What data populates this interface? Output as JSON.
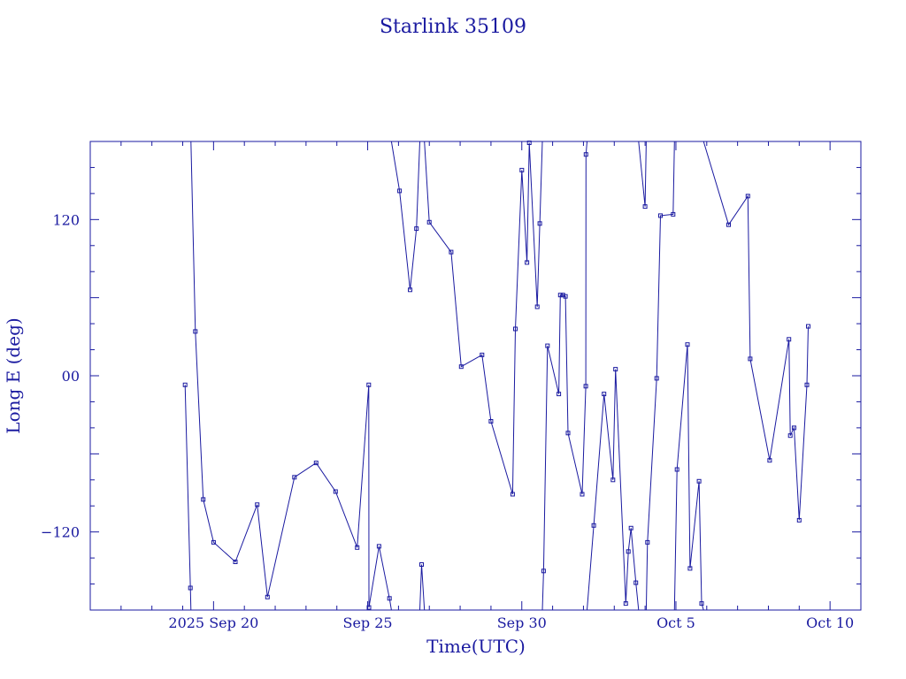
{
  "chart_data": {
    "type": "line",
    "title": "Starlink 35109",
    "xlabel": "Time(UTC)",
    "ylabel": "Long E (deg)",
    "x_range": [
      "2025-09-16T00:00",
      "2025-10-11T00:00"
    ],
    "ylim": [
      -180,
      180
    ],
    "x_ticks": [
      {
        "value": "2025-09-20T00:00",
        "label": "2025 Sep 20"
      },
      {
        "value": "2025-09-25T00:00",
        "label": "Sep 25"
      },
      {
        "value": "2025-09-30T00:00",
        "label": "Sep 30"
      },
      {
        "value": "2025-10-05T00:00",
        "label": "Oct  5"
      },
      {
        "value": "2025-10-10T00:00",
        "label": "Oct 10"
      }
    ],
    "y_ticks": [
      {
        "value": 120,
        "label": "120"
      },
      {
        "value": 0,
        "label": "00"
      },
      {
        "value": -120,
        "label": "−120"
      }
    ],
    "wraps_at_180": true,
    "markers": "open-square",
    "line_color": "#1a1aa0",
    "points": [
      [
        "2025-09-19T01:50",
        -7
      ],
      [
        "2025-09-19T06:00",
        -163
      ],
      [
        "2025-09-19T09:50",
        34
      ],
      [
        "2025-09-19T16:00",
        -95
      ],
      [
        "2025-09-20T00:00",
        -128
      ],
      [
        "2025-09-20T17:00",
        -143
      ],
      [
        "2025-09-21T10:00",
        -99
      ],
      [
        "2025-09-21T18:00",
        -170
      ],
      [
        "2025-09-22T15:00",
        -78
      ],
      [
        "2025-09-23T07:50",
        -67
      ],
      [
        "2025-09-23T23:00",
        -89
      ],
      [
        "2025-09-24T15:50",
        -132
      ],
      [
        "2025-09-25T00:50",
        -7
      ],
      [
        "2025-09-25T01:00",
        -178
      ],
      [
        "2025-09-25T08:50",
        -131
      ],
      [
        "2025-09-25T17:00",
        -171
      ],
      [
        "2025-09-26T00:50",
        142
      ],
      [
        "2025-09-26T09:00",
        66
      ],
      [
        "2025-09-26T14:00",
        113
      ],
      [
        "2025-09-26T18:00",
        -145
      ],
      [
        "2025-09-27T00:00",
        118
      ],
      [
        "2025-09-27T17:00",
        95
      ],
      [
        "2025-09-28T00:50",
        7
      ],
      [
        "2025-09-28T17:00",
        16
      ],
      [
        "2025-09-29T00:00",
        -35
      ],
      [
        "2025-09-29T16:50",
        -91
      ],
      [
        "2025-09-29T19:00",
        36
      ],
      [
        "2025-09-30T00:00",
        158
      ],
      [
        "2025-09-30T04:00",
        87
      ],
      [
        "2025-09-30T05:50",
        179
      ],
      [
        "2025-09-30T12:00",
        53
      ],
      [
        "2025-09-30T14:00",
        117
      ],
      [
        "2025-09-30T17:00",
        -150
      ],
      [
        "2025-09-30T20:00",
        23
      ],
      [
        "2025-10-01T04:50",
        -14
      ],
      [
        "2025-10-01T06:00",
        62
      ],
      [
        "2025-10-01T08:00",
        62
      ],
      [
        "2025-10-01T10:00",
        61
      ],
      [
        "2025-10-01T12:00",
        -44
      ],
      [
        "2025-10-01T23:00",
        -91
      ],
      [
        "2025-10-02T01:50",
        -8
      ],
      [
        "2025-10-02T02:00",
        170
      ],
      [
        "2025-10-02T08:00",
        -115
      ],
      [
        "2025-10-02T16:00",
        -14
      ],
      [
        "2025-10-02T23:00",
        -80
      ],
      [
        "2025-10-03T01:00",
        5
      ],
      [
        "2025-10-03T09:00",
        -175
      ],
      [
        "2025-10-03T11:00",
        -135
      ],
      [
        "2025-10-03T13:00",
        -117
      ],
      [
        "2025-10-03T16:50",
        -159
      ],
      [
        "2025-10-04T00:00",
        130
      ],
      [
        "2025-10-04T01:50",
        -128
      ],
      [
        "2025-10-04T09:00",
        -2
      ],
      [
        "2025-10-04T12:00",
        123
      ],
      [
        "2025-10-04T21:50",
        124
      ],
      [
        "2025-10-05T00:50",
        -72
      ],
      [
        "2025-10-05T09:00",
        24
      ],
      [
        "2025-10-05T11:00",
        -148
      ],
      [
        "2025-10-05T18:00",
        -81
      ],
      [
        "2025-10-05T20:00",
        -175
      ],
      [
        "2025-10-06T17:00",
        116
      ],
      [
        "2025-10-07T08:00",
        138
      ],
      [
        "2025-10-07T09:50",
        13
      ],
      [
        "2025-10-08T01:00",
        -65
      ],
      [
        "2025-10-08T16:00",
        28
      ],
      [
        "2025-10-08T17:00",
        -46
      ],
      [
        "2025-10-08T20:00",
        -40
      ],
      [
        "2025-10-09T00:00",
        -111
      ],
      [
        "2025-10-09T06:00",
        -7
      ],
      [
        "2025-10-09T07:00",
        38
      ]
    ]
  }
}
